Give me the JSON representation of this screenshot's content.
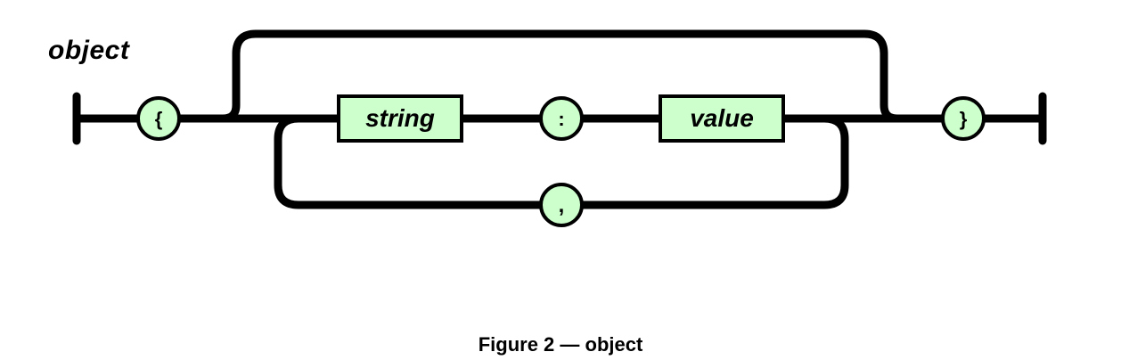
{
  "diagram": {
    "rule_name": "object",
    "caption": "Figure 2 — object",
    "colors": {
      "node_fill": "#ccffcc",
      "stroke": "#000000",
      "background": "#ffffff"
    },
    "nodes": {
      "open_brace": "{",
      "string": "string",
      "colon": ":",
      "value": "value",
      "comma": ",",
      "close_brace": "}"
    }
  }
}
